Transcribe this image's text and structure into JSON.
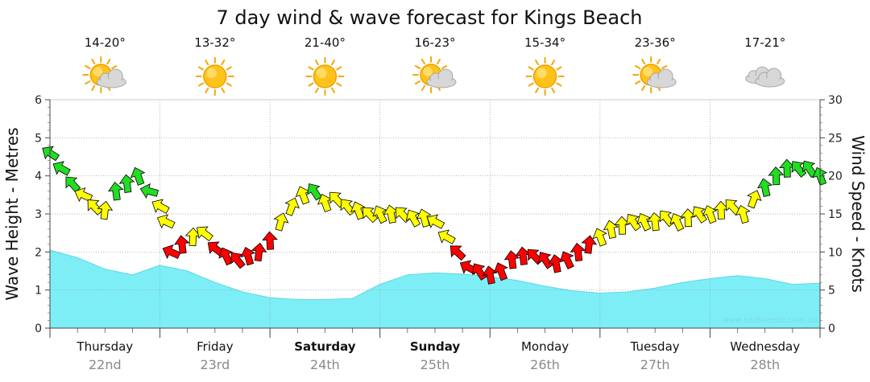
{
  "title": "7 day wind & wave forecast for Kings Beach",
  "credit": "www.seabreeze.com.au",
  "left_axis": {
    "title": "Wave Height - Metres",
    "min": 0,
    "max": 6,
    "ticks": [
      "0",
      "1",
      "2",
      "3",
      "4",
      "5",
      "6"
    ]
  },
  "right_axis": {
    "title": "Wind Speed - Knots",
    "min": 0,
    "max": 30,
    "ticks": [
      "0",
      "5",
      "10",
      "15",
      "20",
      "25",
      "30"
    ]
  },
  "days": [
    {
      "name": "Thursday",
      "date": "22nd",
      "temp": "14-20°",
      "weather_icon": "sun-cloud-icon",
      "bold": false
    },
    {
      "name": "Friday",
      "date": "23rd",
      "temp": "13-32°",
      "weather_icon": "sun-icon",
      "bold": false
    },
    {
      "name": "Saturday",
      "date": "24th",
      "temp": "21-40°",
      "weather_icon": "sun-icon",
      "bold": true
    },
    {
      "name": "Sunday",
      "date": "25th",
      "temp": "16-23°",
      "weather_icon": "sun-cloud-icon",
      "bold": true
    },
    {
      "name": "Monday",
      "date": "26th",
      "temp": "15-34°",
      "weather_icon": "sun-icon",
      "bold": false
    },
    {
      "name": "Tuesday",
      "date": "27th",
      "temp": "23-36°",
      "weather_icon": "sun-cloud-icon",
      "bold": false
    },
    {
      "name": "Wednesday",
      "date": "28th",
      "temp": "17-21°",
      "weather_icon": "cloud-icon",
      "bold": false
    }
  ],
  "colors": {
    "wave_fill": "#7deef6",
    "wave_line": "#5fd6e6",
    "wind_light": "#ff0000",
    "wind_moderate": "#ffff00",
    "wind_strong": "#22dd22",
    "grid": "#999999"
  },
  "chart_data": {
    "type": "area",
    "x_unit": "day (0 = start of Thursday 22nd)",
    "wave_series": {
      "name": "Wave Height",
      "x": [
        0,
        0.25,
        0.5,
        0.75,
        1.0,
        1.25,
        1.5,
        1.75,
        2.0,
        2.25,
        2.5,
        2.75,
        3.0,
        3.25,
        3.5,
        3.75,
        4.0,
        4.25,
        4.5,
        4.75,
        5.0,
        5.25,
        5.5,
        5.75,
        6.0,
        6.25,
        6.5,
        6.75,
        7.0
      ],
      "values": [
        2.05,
        1.85,
        1.55,
        1.4,
        1.65,
        1.5,
        1.2,
        0.95,
        0.8,
        0.75,
        0.75,
        0.78,
        1.15,
        1.4,
        1.45,
        1.42,
        1.35,
        1.25,
        1.1,
        0.98,
        0.92,
        0.95,
        1.05,
        1.2,
        1.3,
        1.38,
        1.3,
        1.15,
        1.18
      ]
    },
    "wind_series": {
      "name": "Wind Speed",
      "x": [
        0,
        0.1,
        0.2,
        0.3,
        0.4,
        0.5,
        0.6,
        0.7,
        0.8,
        0.9,
        1.0,
        1.05,
        1.1,
        1.2,
        1.3,
        1.4,
        1.5,
        1.6,
        1.7,
        1.8,
        1.9,
        2.0,
        2.1,
        2.2,
        2.3,
        2.4,
        2.5,
        2.6,
        2.7,
        2.8,
        2.9,
        3.0,
        3.1,
        3.2,
        3.3,
        3.4,
        3.5,
        3.6,
        3.7,
        3.8,
        3.9,
        4.0,
        4.1,
        4.2,
        4.3,
        4.4,
        4.5,
        4.6,
        4.7,
        4.8,
        4.9,
        5.0,
        5.1,
        5.2,
        5.3,
        5.4,
        5.5,
        5.6,
        5.7,
        5.8,
        5.9,
        6.0,
        6.1,
        6.2,
        6.3,
        6.4,
        6.5,
        6.6,
        6.7,
        6.8,
        6.9,
        7.0
      ],
      "values": [
        23,
        21,
        19,
        17.5,
        16,
        15.5,
        18,
        19,
        20,
        18,
        16,
        14,
        10,
        11,
        12,
        12.5,
        10.5,
        9.5,
        9,
        9.5,
        10,
        11.5,
        14,
        16,
        17.5,
        18,
        16.5,
        17,
        16,
        15.5,
        15,
        15,
        15,
        15,
        14.5,
        14.5,
        14,
        12,
        10,
        8,
        7.5,
        7,
        7.5,
        9,
        9.5,
        9.5,
        9,
        8.5,
        9,
        10,
        11,
        12,
        13,
        13.5,
        14,
        14,
        14,
        14.5,
        14,
        14.5,
        15,
        15,
        15.5,
        16,
        15,
        17,
        18.5,
        20,
        21,
        21,
        21,
        20
      ]
    },
    "x_categories": [
      "Thursday 22nd",
      "Friday 23rd",
      "Saturday 24th",
      "Sunday 25th",
      "Monday 26th",
      "Tuesday 27th",
      "Wednesday 28th"
    ],
    "ylim_left": [
      0,
      6
    ],
    "ylim_right": [
      0,
      30
    ],
    "grid": true
  }
}
